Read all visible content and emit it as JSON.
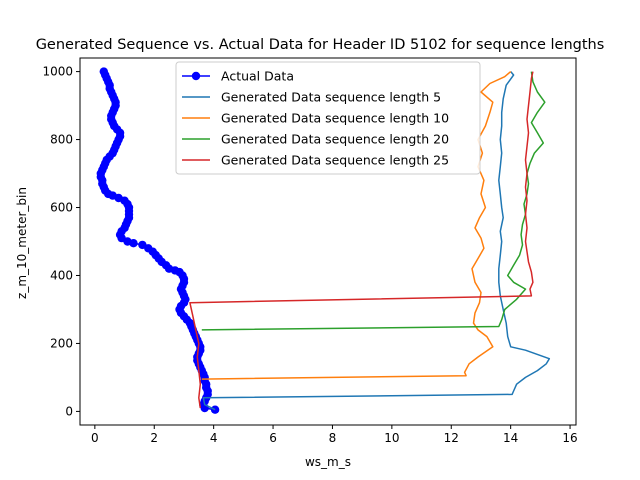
{
  "chart_data": {
    "type": "line",
    "title": "Generated Sequence vs. Actual Data for Header ID 5102 for sequence lengths",
    "xlabel": "ws_m_s",
    "ylabel": "z_m_10_meter_bin",
    "xlim": [
      -0.5,
      16.2
    ],
    "ylim": [
      -40,
      1040
    ],
    "xticks": [
      0,
      2,
      4,
      6,
      8,
      10,
      12,
      14,
      16
    ],
    "yticks": [
      0,
      200,
      400,
      600,
      800,
      1000
    ],
    "legend_position": "top-center",
    "grid": false,
    "series": [
      {
        "name": "Actual Data",
        "color": "#0000ff",
        "marker": "circle",
        "points": [
          [
            0.3,
            1000
          ],
          [
            0.35,
            990
          ],
          [
            0.4,
            980
          ],
          [
            0.45,
            970
          ],
          [
            0.5,
            960
          ],
          [
            0.5,
            950
          ],
          [
            0.55,
            940
          ],
          [
            0.6,
            930
          ],
          [
            0.65,
            920
          ],
          [
            0.7,
            910
          ],
          [
            0.7,
            900
          ],
          [
            0.65,
            890
          ],
          [
            0.6,
            880
          ],
          [
            0.55,
            870
          ],
          [
            0.55,
            860
          ],
          [
            0.6,
            850
          ],
          [
            0.65,
            840
          ],
          [
            0.75,
            830
          ],
          [
            0.85,
            820
          ],
          [
            0.85,
            810
          ],
          [
            0.8,
            800
          ],
          [
            0.75,
            790
          ],
          [
            0.7,
            780
          ],
          [
            0.65,
            770
          ],
          [
            0.6,
            760
          ],
          [
            0.5,
            750
          ],
          [
            0.4,
            740
          ],
          [
            0.35,
            730
          ],
          [
            0.3,
            720
          ],
          [
            0.25,
            710
          ],
          [
            0.2,
            700
          ],
          [
            0.2,
            690
          ],
          [
            0.25,
            680
          ],
          [
            0.25,
            670
          ],
          [
            0.3,
            660
          ],
          [
            0.35,
            650
          ],
          [
            0.45,
            640
          ],
          [
            0.6,
            635
          ],
          [
            0.8,
            628
          ],
          [
            1.0,
            620
          ],
          [
            1.1,
            610
          ],
          [
            1.15,
            600
          ],
          [
            1.15,
            590
          ],
          [
            1.15,
            580
          ],
          [
            1.15,
            570
          ],
          [
            1.1,
            560
          ],
          [
            1.05,
            550
          ],
          [
            1.0,
            540
          ],
          [
            0.9,
            530
          ],
          [
            0.85,
            520
          ],
          [
            0.9,
            510
          ],
          [
            1.1,
            500
          ],
          [
            1.3,
            495
          ],
          [
            1.6,
            490
          ],
          [
            1.8,
            480
          ],
          [
            1.95,
            470
          ],
          [
            2.05,
            460
          ],
          [
            2.15,
            450
          ],
          [
            2.25,
            440
          ],
          [
            2.4,
            430
          ],
          [
            2.5,
            420
          ],
          [
            2.7,
            415
          ],
          [
            2.85,
            410
          ],
          [
            2.95,
            400
          ],
          [
            3.0,
            390
          ],
          [
            3.0,
            380
          ],
          [
            2.95,
            370
          ],
          [
            2.9,
            360
          ],
          [
            2.95,
            350
          ],
          [
            3.0,
            340
          ],
          [
            3.05,
            330
          ],
          [
            3.0,
            320
          ],
          [
            2.9,
            310
          ],
          [
            2.85,
            300
          ],
          [
            2.9,
            290
          ],
          [
            3.0,
            280
          ],
          [
            3.1,
            270
          ],
          [
            3.2,
            260
          ],
          [
            3.25,
            250
          ],
          [
            3.3,
            240
          ],
          [
            3.35,
            230
          ],
          [
            3.4,
            220
          ],
          [
            3.45,
            210
          ],
          [
            3.5,
            200
          ],
          [
            3.55,
            190
          ],
          [
            3.55,
            180
          ],
          [
            3.5,
            170
          ],
          [
            3.45,
            160
          ],
          [
            3.45,
            150
          ],
          [
            3.5,
            140
          ],
          [
            3.55,
            130
          ],
          [
            3.6,
            120
          ],
          [
            3.65,
            110
          ],
          [
            3.7,
            100
          ],
          [
            3.7,
            90
          ],
          [
            3.75,
            80
          ],
          [
            3.75,
            70
          ],
          [
            3.8,
            60
          ],
          [
            3.8,
            50
          ],
          [
            3.75,
            40
          ],
          [
            3.7,
            30
          ],
          [
            3.65,
            20
          ],
          [
            3.7,
            10
          ],
          [
            4.05,
            5
          ]
        ]
      },
      {
        "name": "Generated Data sequence length 5",
        "color": "#1f77b4",
        "marker": "none",
        "points": [
          [
            4.05,
            5
          ],
          [
            3.7,
            20
          ],
          [
            3.65,
            40
          ],
          [
            14.05,
            50
          ],
          [
            14.1,
            60
          ],
          [
            14.2,
            80
          ],
          [
            14.5,
            100
          ],
          [
            14.9,
            120
          ],
          [
            15.2,
            140
          ],
          [
            15.3,
            155
          ],
          [
            14.5,
            180
          ],
          [
            14.0,
            190
          ],
          [
            13.9,
            220
          ],
          [
            13.85,
            260
          ],
          [
            13.75,
            300
          ],
          [
            13.65,
            340
          ],
          [
            13.6,
            380
          ],
          [
            13.6,
            420
          ],
          [
            13.65,
            460
          ],
          [
            13.7,
            500
          ],
          [
            13.65,
            530
          ],
          [
            13.75,
            570
          ],
          [
            13.7,
            600
          ],
          [
            13.65,
            640
          ],
          [
            13.6,
            680
          ],
          [
            13.65,
            720
          ],
          [
            13.7,
            760
          ],
          [
            13.65,
            800
          ],
          [
            13.7,
            840
          ],
          [
            13.7,
            880
          ],
          [
            13.75,
            920
          ],
          [
            13.85,
            960
          ],
          [
            14.1,
            990
          ],
          [
            14.0,
            1000
          ]
        ]
      },
      {
        "name": "Generated Data sequence length 10",
        "color": "#ff7f0e",
        "marker": "none",
        "points": [
          [
            3.6,
            95
          ],
          [
            12.5,
            105
          ],
          [
            12.45,
            115
          ],
          [
            12.6,
            140
          ],
          [
            12.9,
            160
          ],
          [
            13.4,
            190
          ],
          [
            13.2,
            220
          ],
          [
            12.9,
            240
          ],
          [
            12.75,
            260
          ],
          [
            12.8,
            290
          ],
          [
            12.95,
            320
          ],
          [
            13.0,
            350
          ],
          [
            12.8,
            380
          ],
          [
            12.7,
            420
          ],
          [
            12.9,
            450
          ],
          [
            13.1,
            480
          ],
          [
            13.0,
            510
          ],
          [
            12.8,
            540
          ],
          [
            12.95,
            570
          ],
          [
            13.15,
            600
          ],
          [
            13.0,
            640
          ],
          [
            13.1,
            680
          ],
          [
            12.9,
            720
          ],
          [
            13.05,
            760
          ],
          [
            12.9,
            800
          ],
          [
            13.15,
            840
          ],
          [
            13.3,
            880
          ],
          [
            13.4,
            910
          ],
          [
            13.0,
            940
          ],
          [
            13.3,
            965
          ],
          [
            13.8,
            985
          ],
          [
            14.0,
            1000
          ]
        ]
      },
      {
        "name": "Generated Data sequence length 20",
        "color": "#2ca02c",
        "marker": "none",
        "points": [
          [
            3.6,
            240
          ],
          [
            13.6,
            250
          ],
          [
            13.7,
            270
          ],
          [
            13.8,
            300
          ],
          [
            14.2,
            330
          ],
          [
            14.5,
            360
          ],
          [
            14.1,
            380
          ],
          [
            13.9,
            400
          ],
          [
            14.1,
            430
          ],
          [
            14.3,
            460
          ],
          [
            14.4,
            490
          ],
          [
            14.35,
            520
          ],
          [
            14.4,
            550
          ],
          [
            14.5,
            580
          ],
          [
            14.45,
            610
          ],
          [
            14.55,
            640
          ],
          [
            14.6,
            670
          ],
          [
            14.55,
            700
          ],
          [
            14.65,
            730
          ],
          [
            14.8,
            760
          ],
          [
            15.1,
            790
          ],
          [
            14.9,
            820
          ],
          [
            14.7,
            850
          ],
          [
            14.9,
            880
          ],
          [
            15.15,
            910
          ],
          [
            14.9,
            940
          ],
          [
            14.75,
            970
          ],
          [
            14.7,
            1000
          ]
        ]
      },
      {
        "name": "Generated Data sequence length 25",
        "color": "#d62728",
        "marker": "none",
        "points": [
          [
            3.55,
            10
          ],
          [
            3.5,
            40
          ],
          [
            3.55,
            80
          ],
          [
            3.5,
            120
          ],
          [
            3.45,
            160
          ],
          [
            3.5,
            200
          ],
          [
            3.4,
            240
          ],
          [
            3.3,
            280
          ],
          [
            3.2,
            320
          ],
          [
            14.7,
            340
          ],
          [
            14.65,
            360
          ],
          [
            14.75,
            380
          ],
          [
            14.7,
            410
          ],
          [
            14.6,
            440
          ],
          [
            14.55,
            470
          ],
          [
            14.5,
            500
          ],
          [
            14.55,
            540
          ],
          [
            14.5,
            580
          ],
          [
            14.55,
            620
          ],
          [
            14.5,
            660
          ],
          [
            14.55,
            700
          ],
          [
            14.5,
            740
          ],
          [
            14.55,
            780
          ],
          [
            14.6,
            820
          ],
          [
            14.55,
            860
          ],
          [
            14.6,
            900
          ],
          [
            14.65,
            940
          ],
          [
            14.7,
            980
          ],
          [
            14.75,
            1000
          ]
        ]
      }
    ]
  }
}
